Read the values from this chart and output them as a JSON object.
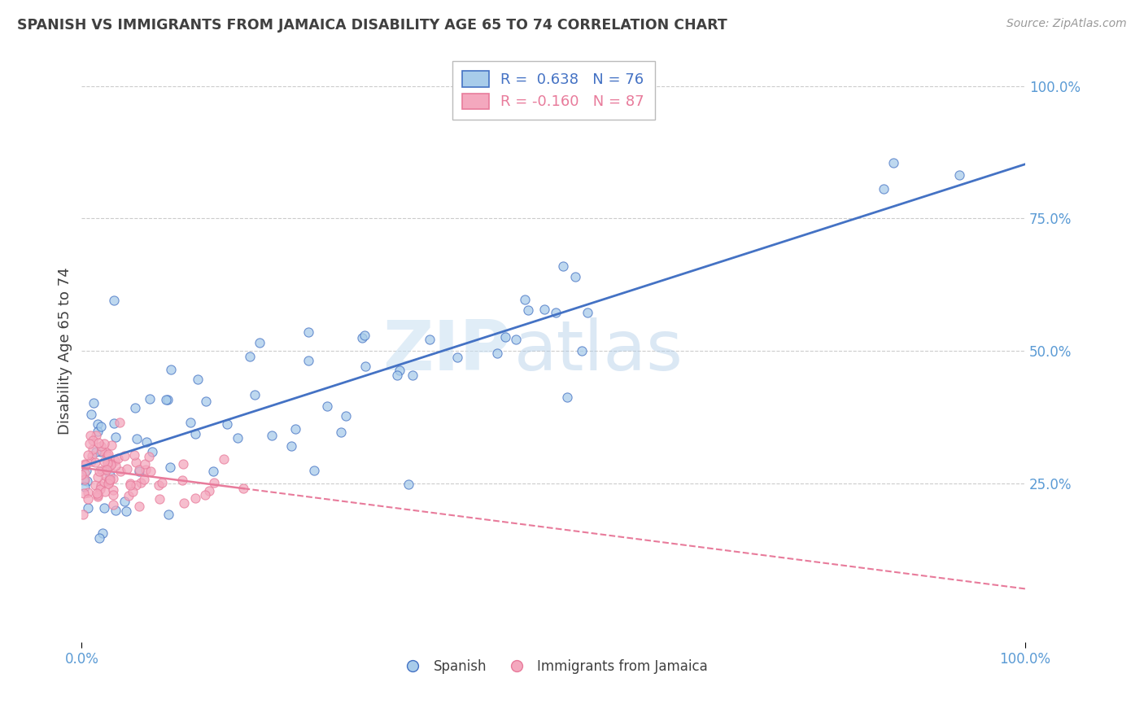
{
  "title": "SPANISH VS IMMIGRANTS FROM JAMAICA DISABILITY AGE 65 TO 74 CORRELATION CHART",
  "source": "Source: ZipAtlas.com",
  "ylabel": "Disability Age 65 to 74",
  "xlim": [
    0.0,
    1.0
  ],
  "ylim": [
    -0.05,
    1.05
  ],
  "yticks_right": [
    0.25,
    0.5,
    0.75,
    1.0
  ],
  "ytick_labels_right": [
    "25.0%",
    "50.0%",
    "75.0%",
    "100.0%"
  ],
  "xtick_labels": [
    "0.0%",
    "100.0%"
  ],
  "blue_R": 0.638,
  "blue_N": 76,
  "pink_R": -0.16,
  "pink_N": 87,
  "blue_color": "#A8CCEA",
  "pink_color": "#F4A8BE",
  "blue_line_color": "#4472C4",
  "pink_line_color": "#E87B9B",
  "legend_blue_label": "Spanish",
  "legend_pink_label": "Immigrants from Jamaica",
  "watermark_zip": "ZIP",
  "watermark_atlas": "atlas",
  "background_color": "#ffffff",
  "grid_color": "#cccccc",
  "title_color": "#404040",
  "axis_label_color": "#5B9BD5",
  "blue_line_intercept": 0.27,
  "blue_line_slope": 0.63,
  "pink_line_intercept": 0.275,
  "pink_line_slope": -0.12
}
